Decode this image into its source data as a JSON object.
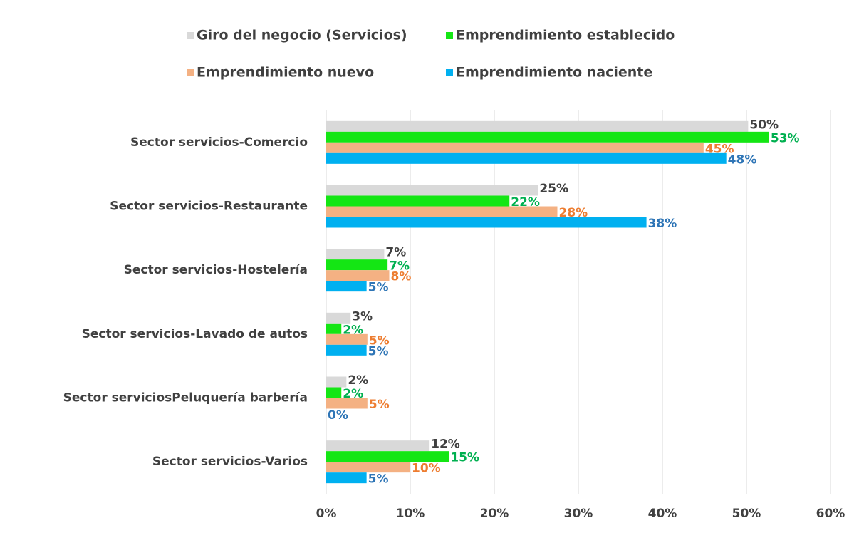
{
  "chart_data": {
    "type": "hbar",
    "categories": [
      "Sector servicios-Comercio",
      "Sector servicios-Restaurante",
      "Sector servicios-Hostelería",
      "Sector servicios-Lavado de autos",
      "Sector serviciosPeluquería barbería",
      "Sector servicios-Varios"
    ],
    "series": [
      {
        "name": "Giro del negocio (Servicios)",
        "color": "#d9d9d9",
        "label_color": "#404040",
        "values": [
          50.2,
          25.2,
          6.9,
          2.9,
          2.4,
          12.3
        ],
        "value_labels": [
          "50%",
          "25%",
          "7%",
          "3%",
          "2%",
          "12%"
        ]
      },
      {
        "name": "Emprendimiento establecido",
        "color": "#14e614",
        "label_color": "#00b050",
        "values": [
          52.7,
          21.8,
          7.3,
          1.8,
          1.8,
          14.6
        ],
        "value_labels": [
          "53%",
          "22%",
          "7%",
          "2%",
          "2%",
          "15%"
        ]
      },
      {
        "name": "Emprendimiento nuevo",
        "color": "#f4b183",
        "label_color": "#ed7d31",
        "values": [
          44.9,
          27.5,
          7.5,
          4.9,
          4.9,
          10.0
        ],
        "value_labels": [
          "45%",
          "28%",
          "8%",
          "5%",
          "5%",
          "10%"
        ]
      },
      {
        "name": "Emprendimiento naciente",
        "color": "#00b0f0",
        "label_color": "#2e75b6",
        "values": [
          47.6,
          38.1,
          4.8,
          4.8,
          0,
          4.8
        ],
        "value_labels": [
          "48%",
          "38%",
          "5%",
          "5%",
          "0%",
          "5%"
        ]
      }
    ],
    "xlim": [
      0,
      60
    ],
    "xticks": [
      {
        "value": 0,
        "label": "0%"
      },
      {
        "value": 10,
        "label": "10%"
      },
      {
        "value": 20,
        "label": "20%"
      },
      {
        "value": 30,
        "label": "30%"
      },
      {
        "value": 40,
        "label": "40%"
      },
      {
        "value": 50,
        "label": "50%"
      },
      {
        "value": 60,
        "label": "60%"
      }
    ],
    "grid": true
  }
}
